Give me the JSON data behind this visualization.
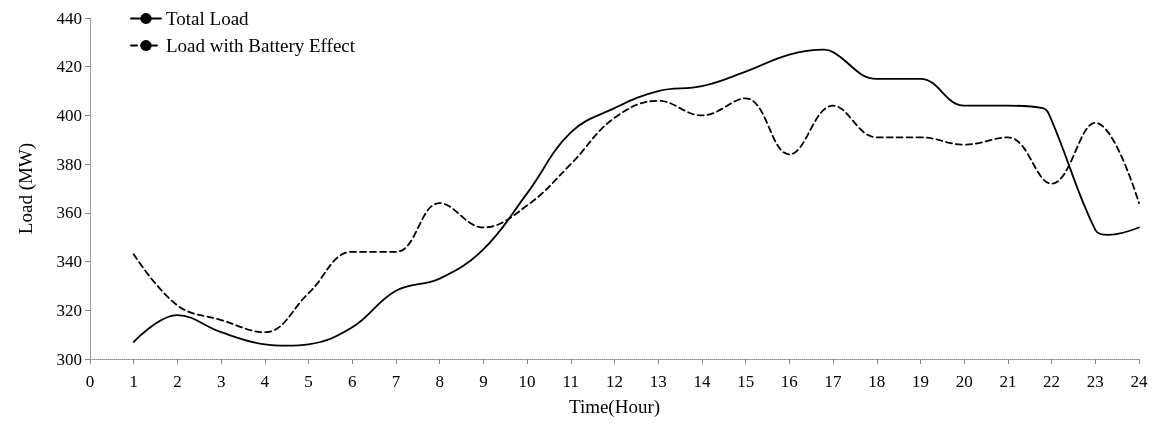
{
  "chart_data": {
    "type": "line",
    "xlabel": "Time(Hour)",
    "ylabel": "Load (MW)",
    "xlim": [
      0,
      24
    ],
    "xticks": [
      0,
      1,
      2,
      3,
      4,
      5,
      6,
      7,
      8,
      9,
      10,
      11,
      12,
      13,
      14,
      15,
      16,
      17,
      18,
      19,
      20,
      21,
      22,
      23,
      24
    ],
    "ylim": [
      300,
      440
    ],
    "yticks": [
      300,
      320,
      340,
      360,
      380,
      400,
      420,
      440
    ],
    "grid": false,
    "legend": "top left",
    "marker": "none",
    "series": [
      {
        "name": "Total Load",
        "color": "#000000",
        "line_style": "solid",
        "x": [
          1,
          2,
          3,
          4,
          4.5,
          5,
          6,
          7,
          8,
          9,
          10,
          11,
          12,
          13,
          14,
          15,
          16,
          16.8,
          17,
          18,
          19,
          20,
          21,
          21.8,
          22,
          23,
          23.3,
          24
        ],
        "values": [
          307,
          318,
          311,
          306,
          305.5,
          306,
          313,
          328,
          333,
          345,
          368,
          393,
          403,
          410,
          412,
          418,
          425,
          427,
          426,
          415,
          415,
          404,
          404,
          403,
          398,
          353,
          351,
          354
        ]
      },
      {
        "name": "Load with Battery Effect",
        "color": "#000000",
        "line_style": "dashed",
        "x": [
          1,
          2,
          3,
          4,
          5,
          6,
          7,
          8,
          9,
          10,
          11,
          12,
          13,
          14,
          15,
          16,
          17,
          18,
          19,
          20,
          21,
          22,
          23,
          24
        ],
        "values": [
          343,
          322,
          316,
          311,
          327,
          344,
          344,
          364,
          354,
          363,
          380,
          399,
          406,
          400,
          407,
          384,
          404,
          391,
          391,
          388,
          391,
          372,
          397,
          364
        ]
      }
    ]
  }
}
